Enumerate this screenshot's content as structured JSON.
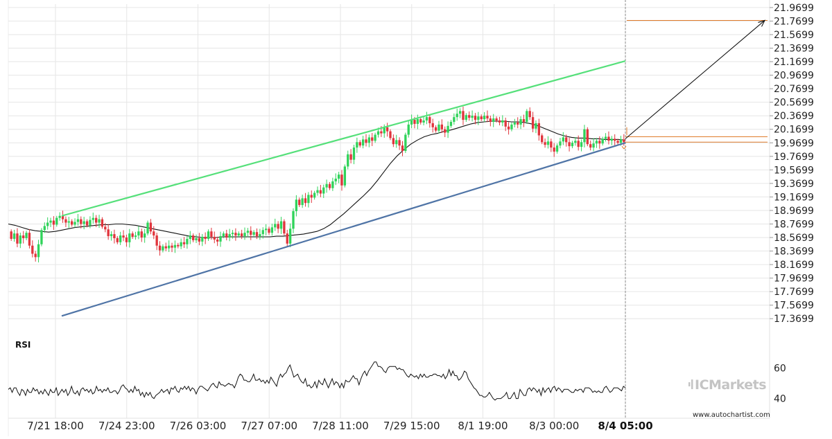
{
  "chart_data": {
    "type": "candlestick",
    "instrument_panel": {
      "y_ticks": [
        "21.9699",
        "21.7699",
        "21.5699",
        "21.3699",
        "21.1699",
        "20.9699",
        "20.7699",
        "20.5699",
        "20.3699",
        "20.1699",
        "19.9699",
        "19.7699",
        "19.5699",
        "19.3699",
        "19.1699",
        "18.9699",
        "18.7699",
        "18.5699",
        "18.3699",
        "18.1699",
        "17.9699",
        "17.7699",
        "17.5699",
        "17.3699"
      ],
      "ylim": [
        17.27,
        22.02
      ],
      "x_ticks": [
        "7/21 18:00",
        "7/24 23:00",
        "7/26 03:00",
        "7/27 07:00",
        "7/28 11:00",
        "7/29 15:00",
        "8/1 19:00",
        "8/3 00:00",
        "8/4 05:00"
      ],
      "x_ticks_bold_index": 8,
      "grid": true,
      "candles_open_close": [
        [
          18.66,
          18.55
        ],
        [
          18.55,
          18.63
        ],
        [
          18.63,
          18.48
        ],
        [
          18.48,
          18.6
        ],
        [
          18.6,
          18.56
        ],
        [
          18.56,
          18.64
        ],
        [
          18.64,
          18.45
        ],
        [
          18.45,
          18.33
        ],
        [
          18.33,
          18.28
        ],
        [
          18.28,
          18.47
        ],
        [
          18.47,
          18.68
        ],
        [
          18.68,
          18.74
        ],
        [
          18.74,
          18.79
        ],
        [
          18.79,
          18.82
        ],
        [
          18.82,
          18.76
        ],
        [
          18.76,
          18.86
        ],
        [
          18.86,
          18.89
        ],
        [
          18.89,
          18.84
        ],
        [
          18.84,
          18.79
        ],
        [
          18.79,
          18.81
        ],
        [
          18.81,
          18.76
        ],
        [
          18.76,
          18.8
        ],
        [
          18.8,
          18.84
        ],
        [
          18.84,
          18.77
        ],
        [
          18.77,
          18.81
        ],
        [
          18.81,
          18.75
        ],
        [
          18.75,
          18.83
        ],
        [
          18.83,
          18.86
        ],
        [
          18.86,
          18.79
        ],
        [
          18.79,
          18.84
        ],
        [
          18.84,
          18.73
        ],
        [
          18.73,
          18.69
        ],
        [
          18.69,
          18.59
        ],
        [
          18.59,
          18.62
        ],
        [
          18.62,
          18.56
        ],
        [
          18.56,
          18.5
        ],
        [
          18.5,
          18.6
        ],
        [
          18.6,
          18.57
        ],
        [
          18.57,
          18.5
        ],
        [
          18.5,
          18.63
        ],
        [
          18.63,
          18.58
        ],
        [
          18.58,
          18.6
        ],
        [
          18.6,
          18.66
        ],
        [
          18.66,
          18.57
        ],
        [
          18.57,
          18.63
        ],
        [
          18.63,
          18.79
        ],
        [
          18.79,
          18.66
        ],
        [
          18.66,
          18.6
        ],
        [
          18.6,
          18.45
        ],
        [
          18.45,
          18.38
        ],
        [
          18.38,
          18.44
        ],
        [
          18.44,
          18.41
        ],
        [
          18.41,
          18.45
        ],
        [
          18.45,
          18.42
        ],
        [
          18.42,
          18.46
        ],
        [
          18.46,
          18.44
        ],
        [
          18.44,
          18.5
        ],
        [
          18.5,
          18.47
        ],
        [
          18.47,
          18.55
        ],
        [
          18.55,
          18.6
        ],
        [
          18.6,
          18.53
        ],
        [
          18.53,
          18.56
        ],
        [
          18.56,
          18.51
        ],
        [
          18.51,
          18.58
        ],
        [
          18.58,
          18.55
        ],
        [
          18.55,
          18.66
        ],
        [
          18.66,
          18.58
        ],
        [
          18.58,
          18.54
        ],
        [
          18.54,
          18.51
        ],
        [
          18.51,
          18.59
        ],
        [
          18.59,
          18.63
        ],
        [
          18.63,
          18.57
        ],
        [
          18.57,
          18.62
        ],
        [
          18.62,
          18.64
        ],
        [
          18.64,
          18.6
        ],
        [
          18.6,
          18.63
        ],
        [
          18.63,
          18.59
        ],
        [
          18.59,
          18.64
        ],
        [
          18.64,
          18.67
        ],
        [
          18.67,
          18.61
        ],
        [
          18.61,
          18.65
        ],
        [
          18.65,
          18.59
        ],
        [
          18.59,
          18.62
        ],
        [
          18.62,
          18.68
        ],
        [
          18.68,
          18.7
        ],
        [
          18.7,
          18.64
        ],
        [
          18.64,
          18.72
        ],
        [
          18.72,
          18.77
        ],
        [
          18.77,
          18.7
        ],
        [
          18.7,
          18.81
        ],
        [
          18.81,
          18.63
        ],
        [
          18.63,
          18.48
        ],
        [
          18.48,
          18.7
        ],
        [
          18.7,
          18.96
        ],
        [
          18.96,
          19.13
        ],
        [
          19.13,
          19.05
        ],
        [
          19.05,
          19.15
        ],
        [
          19.15,
          19.08
        ],
        [
          19.08,
          19.2
        ],
        [
          19.2,
          19.16
        ],
        [
          19.16,
          19.23
        ],
        [
          19.23,
          19.27
        ],
        [
          19.27,
          19.22
        ],
        [
          19.22,
          19.31
        ],
        [
          19.31,
          19.36
        ],
        [
          19.36,
          19.3
        ],
        [
          19.3,
          19.4
        ],
        [
          19.4,
          19.44
        ],
        [
          19.44,
          19.5
        ],
        [
          19.5,
          19.34
        ],
        [
          19.34,
          19.62
        ],
        [
          19.62,
          19.8
        ],
        [
          19.8,
          19.72
        ],
        [
          19.72,
          19.9
        ],
        [
          19.9,
          19.98
        ],
        [
          19.98,
          19.93
        ],
        [
          19.93,
          20.02
        ],
        [
          20.02,
          19.97
        ],
        [
          19.97,
          20.05
        ],
        [
          20.05,
          20.0
        ],
        [
          20.0,
          20.09
        ],
        [
          20.09,
          20.14
        ],
        [
          20.14,
          20.11
        ],
        [
          20.11,
          20.2
        ],
        [
          20.2,
          20.14
        ],
        [
          20.14,
          20.04
        ],
        [
          20.04,
          19.95
        ],
        [
          19.95,
          20.01
        ],
        [
          20.01,
          19.93
        ],
        [
          19.93,
          19.85
        ],
        [
          19.85,
          20.09
        ],
        [
          20.09,
          20.24
        ],
        [
          20.24,
          20.31
        ],
        [
          20.31,
          20.25
        ],
        [
          20.25,
          20.32
        ],
        [
          20.32,
          20.27
        ],
        [
          20.27,
          20.3
        ],
        [
          20.3,
          20.35
        ],
        [
          20.35,
          20.26
        ],
        [
          20.26,
          20.2
        ],
        [
          20.2,
          20.15
        ],
        [
          20.15,
          20.24
        ],
        [
          20.24,
          20.17
        ],
        [
          20.17,
          20.12
        ],
        [
          20.12,
          20.22
        ],
        [
          20.22,
          20.28
        ],
        [
          20.28,
          20.35
        ],
        [
          20.35,
          20.4
        ],
        [
          20.4,
          20.44
        ],
        [
          20.44,
          20.31
        ],
        [
          20.31,
          20.38
        ],
        [
          20.38,
          20.34
        ],
        [
          20.34,
          20.37
        ],
        [
          20.37,
          20.31
        ],
        [
          20.31,
          20.36
        ],
        [
          20.36,
          20.32
        ],
        [
          20.32,
          20.37
        ],
        [
          20.37,
          20.33
        ],
        [
          20.33,
          20.28
        ],
        [
          20.28,
          20.33
        ],
        [
          20.33,
          20.3
        ],
        [
          20.3,
          20.27
        ],
        [
          20.27,
          20.3
        ],
        [
          20.3,
          20.21
        ],
        [
          20.21,
          20.17
        ],
        [
          20.17,
          20.24
        ],
        [
          20.24,
          20.27
        ],
        [
          20.27,
          20.24
        ],
        [
          20.24,
          20.32
        ],
        [
          20.32,
          20.28
        ],
        [
          20.28,
          20.44
        ],
        [
          20.44,
          20.35
        ],
        [
          20.35,
          20.18
        ],
        [
          20.18,
          20.26
        ],
        [
          20.26,
          20.08
        ],
        [
          20.08,
          19.98
        ],
        [
          19.98,
          19.94
        ],
        [
          19.94,
          19.99
        ],
        [
          19.99,
          19.9
        ],
        [
          19.9,
          19.84
        ],
        [
          19.84,
          19.93
        ],
        [
          19.93,
          19.99
        ],
        [
          19.99,
          20.05
        ],
        [
          20.05,
          19.98
        ],
        [
          19.98,
          19.92
        ],
        [
          19.92,
          19.97
        ],
        [
          19.97,
          20.0
        ],
        [
          20.0,
          19.91
        ],
        [
          19.91,
          19.98
        ],
        [
          19.98,
          20.17
        ],
        [
          20.17,
          19.95
        ],
        [
          19.95,
          19.9
        ],
        [
          19.9,
          19.96
        ],
        [
          19.96,
          20.0
        ],
        [
          20.0,
          19.96
        ],
        [
          19.96,
          20.03
        ],
        [
          20.03,
          20.06
        ],
        [
          20.06,
          20.0
        ],
        [
          20.0,
          20.03
        ],
        [
          20.03,
          20.0
        ],
        [
          20.0,
          19.97
        ],
        [
          19.97,
          20.02
        ],
        [
          20.02,
          19.98
        ]
      ],
      "moving_average": [
        18.77,
        18.75,
        18.72,
        18.69,
        18.67,
        18.66,
        18.65,
        18.66,
        18.68,
        18.7,
        18.72,
        18.73,
        18.74,
        18.75,
        18.76,
        18.76,
        18.77,
        18.77,
        18.76,
        18.75,
        18.73,
        18.71,
        18.69,
        18.67,
        18.65,
        18.63,
        18.61,
        18.59,
        18.58,
        18.57,
        18.57,
        18.57,
        18.58,
        18.58,
        18.58,
        18.58,
        18.58,
        18.58,
        18.58,
        18.58,
        18.59,
        18.59,
        18.6,
        18.61,
        18.62,
        18.64,
        18.66,
        18.7,
        18.76,
        18.84,
        18.92,
        19.01,
        19.1,
        19.19,
        19.29,
        19.41,
        19.54,
        19.67,
        19.78,
        19.87,
        19.95,
        20.01,
        20.06,
        20.09,
        20.11,
        20.14,
        20.16,
        20.19,
        20.22,
        20.25,
        20.27,
        20.28,
        20.29,
        20.29,
        20.29,
        20.28,
        20.28,
        20.27,
        20.25,
        20.22,
        20.18,
        20.14,
        20.1,
        20.07,
        20.05,
        20.04,
        20.04,
        20.03,
        20.03,
        20.02,
        20.02,
        20.02,
        20.01
      ],
      "upper_trend_line": {
        "start": [
          "7/21 18:00",
          18.89
        ],
        "end": [
          "8/4 05:00",
          21.18
        ],
        "color": "#55e07a"
      },
      "lower_trend_line": {
        "start": [
          "7/21 18:00",
          17.41
        ],
        "end": [
          "8/4 05:00",
          19.97
        ],
        "color": "#4f74a6"
      },
      "horizontal_levels": [
        21.78,
        20.06,
        19.98
      ],
      "level_color": "#e07b2a",
      "projection_target": 21.78
    },
    "rsi_panel": {
      "label": "RSI",
      "y_ticks": [
        60,
        40
      ],
      "ylim": [
        28,
        82
      ],
      "values": [
        46,
        47,
        44,
        47,
        47,
        44,
        42,
        46,
        45,
        42,
        46,
        44,
        44,
        47,
        45,
        46,
        43,
        45,
        43,
        46,
        44,
        42,
        46,
        44,
        44,
        47,
        42,
        44,
        46,
        44,
        46,
        42,
        44,
        48,
        44,
        43,
        45,
        42,
        46,
        47,
        45,
        46,
        44,
        46,
        43,
        44,
        48,
        45,
        46,
        44,
        46,
        45,
        47,
        44,
        44,
        45,
        45,
        43,
        45,
        48,
        49,
        47,
        46,
        44,
        46,
        44,
        48,
        45,
        46,
        42,
        44,
        41,
        44,
        42,
        44,
        41,
        40,
        42,
        43,
        44,
        46,
        44,
        45,
        46,
        43,
        47,
        46,
        48,
        45,
        44,
        47,
        46,
        48,
        46,
        48,
        45,
        47,
        46,
        43,
        46,
        48,
        48,
        47,
        46,
        45,
        47,
        49,
        50,
        48,
        47,
        51,
        49,
        49,
        48,
        49,
        50,
        49,
        49,
        47,
        50,
        54,
        56,
        55,
        52,
        52,
        51,
        51,
        53,
        56,
        52,
        52,
        53,
        51,
        52,
        50,
        52,
        50,
        54,
        52,
        50,
        48,
        53,
        56,
        54,
        56,
        57,
        60,
        62,
        58,
        54,
        55,
        56,
        53,
        51,
        50,
        53,
        48,
        49,
        47,
        48,
        51,
        47,
        52,
        50,
        49,
        53,
        50,
        47,
        50,
        53,
        49,
        51,
        50,
        47,
        50,
        47,
        52,
        51,
        51,
        53,
        55,
        53,
        53,
        49,
        53,
        56,
        58,
        55,
        58,
        60,
        62,
        64,
        64,
        61,
        61,
        60,
        58,
        57,
        60,
        61,
        61,
        61,
        61,
        59,
        60,
        59,
        59,
        57,
        55,
        54,
        56,
        55,
        54,
        55,
        53,
        56,
        54,
        56,
        54,
        54,
        55,
        55,
        56,
        56,
        55,
        55,
        54,
        56,
        53,
        55,
        59,
        55,
        58,
        55,
        55,
        52,
        53,
        55,
        58,
        57,
        53,
        51,
        49,
        47,
        46,
        44,
        42,
        42,
        41,
        41,
        42,
        44,
        42,
        40,
        39,
        40,
        40,
        40,
        41,
        42,
        44,
        40,
        40,
        42,
        44,
        40,
        40,
        46,
        44,
        42,
        42,
        46,
        47,
        45,
        47,
        46,
        44,
        46,
        42,
        47,
        44,
        46,
        47,
        44,
        47,
        48,
        45,
        47,
        46,
        44,
        46,
        46,
        46,
        45,
        44,
        44,
        46,
        45,
        46,
        46,
        44,
        47,
        47,
        47,
        46,
        44,
        45,
        44,
        45,
        44,
        44,
        47,
        48,
        46,
        44,
        45,
        47,
        47,
        47,
        46,
        45,
        48,
        47
      ]
    },
    "branding": {
      "logo_text": "ICMarkets",
      "website": "www.autochartist.com"
    }
  },
  "colors": {
    "bull_candle": "#2fd35a",
    "bear_candle": "#e0343c",
    "grid": "#e6e6e6",
    "axis_text": "#222222",
    "ma_line": "#111111",
    "rsi_line": "#111111",
    "projection_arrow": "#111111",
    "vertical_marker": "#888888"
  }
}
